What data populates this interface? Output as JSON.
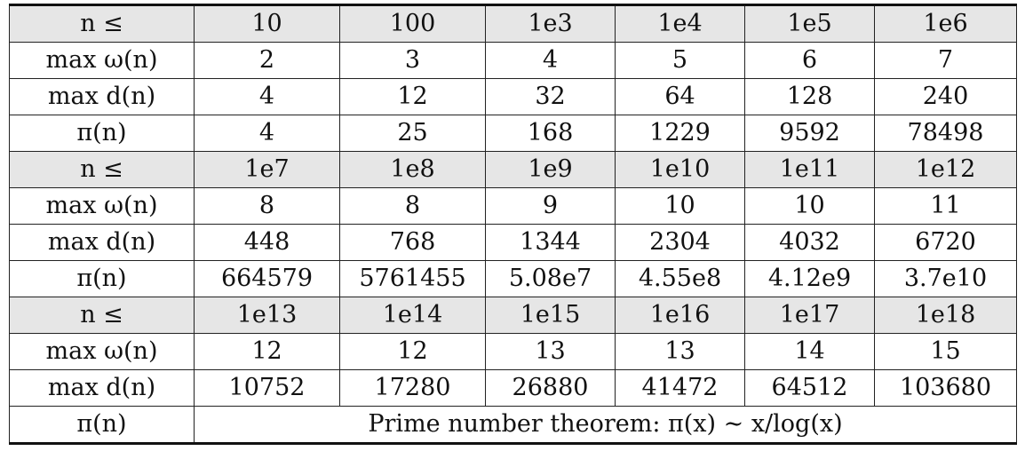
{
  "blocks": [
    {
      "n_label": "n ≤",
      "limits": [
        "10",
        "100",
        "1e3",
        "1e4",
        "1e5",
        "1e6"
      ],
      "omega_label": "max ω(n)",
      "omega": [
        "2",
        "3",
        "4",
        "5",
        "6",
        "7"
      ],
      "d_label": "max d(n)",
      "d": [
        "4",
        "12",
        "32",
        "64",
        "128",
        "240"
      ],
      "pi_label": "π(n)",
      "pi": [
        "4",
        "25",
        "168",
        "1229",
        "9592",
        "78498"
      ]
    },
    {
      "n_label": "n ≤",
      "limits": [
        "1e7",
        "1e8",
        "1e9",
        "1e10",
        "1e11",
        "1e12"
      ],
      "omega_label": "max ω(n)",
      "omega": [
        "8",
        "8",
        "9",
        "10",
        "10",
        "11"
      ],
      "d_label": "max d(n)",
      "d": [
        "448",
        "768",
        "1344",
        "2304",
        "4032",
        "6720"
      ],
      "pi_label": "π(n)",
      "pi": [
        "664579",
        "5761455",
        "5.08e7",
        "4.55e8",
        "4.12e9",
        "3.7e10"
      ]
    },
    {
      "n_label": "n ≤",
      "limits": [
        "1e13",
        "1e14",
        "1e15",
        "1e16",
        "1e17",
        "1e18"
      ],
      "omega_label": "max ω(n)",
      "omega": [
        "12",
        "12",
        "13",
        "13",
        "14",
        "15"
      ],
      "d_label": "max d(n)",
      "d": [
        "10752",
        "17280",
        "26880",
        "41472",
        "64512",
        "103680"
      ],
      "pi_label": "π(n)",
      "pi_note": "Prime number theorem: π(x) ∼ x/log(x)"
    }
  ]
}
